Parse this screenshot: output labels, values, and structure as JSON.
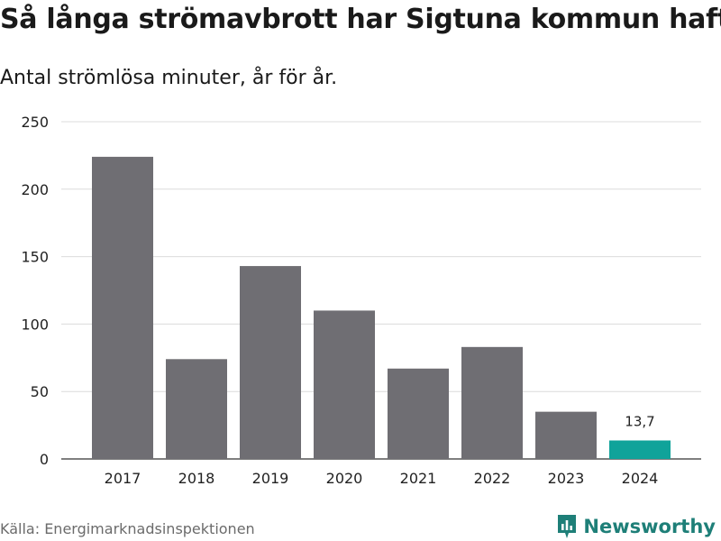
{
  "header": {
    "title": "Så långa strömavbrott har Sigtuna kommun haft",
    "subtitle": "Antal strömlösa minuter, år för år."
  },
  "footer": {
    "source": "Källa: Energimarknadsinspektionen",
    "brand": "Newsworthy"
  },
  "chart_data": {
    "type": "bar",
    "title": "Så långa strömavbrott har Sigtuna kommun haft",
    "subtitle": "Antal strömlösa minuter, år för år.",
    "xlabel": "",
    "ylabel": "",
    "categories": [
      "2017",
      "2018",
      "2019",
      "2020",
      "2021",
      "2022",
      "2023",
      "2024"
    ],
    "values": [
      224,
      74,
      143,
      110,
      67,
      83,
      35,
      13.7
    ],
    "ylim": [
      0,
      250
    ],
    "yticks": [
      "0",
      "50",
      "100",
      "150",
      "200",
      "250"
    ],
    "grid": true,
    "highlight_index": 7,
    "highlight_label": "13,7",
    "colors": {
      "bar": "#6f6e73",
      "highlight": "#10a39a",
      "grid": "#dcdcdc",
      "axis": "#333333"
    }
  }
}
